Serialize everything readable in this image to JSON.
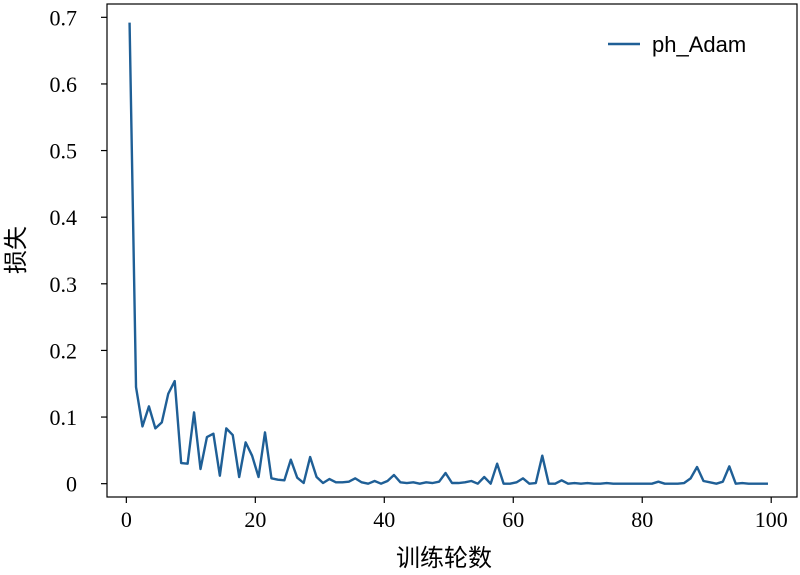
{
  "chart_data": {
    "type": "line",
    "xlabel": "训练轮数",
    "ylabel": "损失",
    "xlim": [
      -3,
      104
    ],
    "ylim": [
      -0.02,
      0.72
    ],
    "xticks": [
      0,
      20,
      40,
      60,
      80,
      100
    ],
    "xtick_labels": [
      "0",
      "20",
      "40",
      "60",
      "80",
      "100"
    ],
    "yticks": [
      0,
      0.1,
      0.2,
      0.3,
      0.4,
      0.5,
      0.6,
      0.7
    ],
    "ytick_labels": [
      "0",
      "0.1",
      "0.2",
      "0.3",
      "0.4",
      "0.5",
      "0.6",
      "0.7"
    ],
    "legend_position": "top-right",
    "grid": false,
    "series": [
      {
        "name": "ph_Adam",
        "color": "#1f5f96",
        "x": [
          0.5,
          1.5,
          2.5,
          3.5,
          4.5,
          5.5,
          6.5,
          7.5,
          8.5,
          9.5,
          10.5,
          11.5,
          12.5,
          13.5,
          14.5,
          15.5,
          16.5,
          17.5,
          18.5,
          19.5,
          20.5,
          21.5,
          22.5,
          23.5,
          24.5,
          25.5,
          26.5,
          27.5,
          28.5,
          29.5,
          30.5,
          31.5,
          32.5,
          33.5,
          34.5,
          35.5,
          36.5,
          37.5,
          38.5,
          39.5,
          40.5,
          41.5,
          42.5,
          43.5,
          44.5,
          45.5,
          46.5,
          47.5,
          48.5,
          49.5,
          50.5,
          51.5,
          52.5,
          53.5,
          54.5,
          55.5,
          56.5,
          57.5,
          58.5,
          59.5,
          60.5,
          61.5,
          62.5,
          63.5,
          64.5,
          65.5,
          66.5,
          67.5,
          68.5,
          69.5,
          70.5,
          71.5,
          72.5,
          73.5,
          74.5,
          75.5,
          76.5,
          77.5,
          78.5,
          79.5,
          80.5,
          81.5,
          82.5,
          83.5,
          84.5,
          85.5,
          86.5,
          87.5,
          88.5,
          89.5,
          90.5,
          91.5,
          92.5,
          93.5,
          94.5,
          95.5,
          96.5,
          97.5,
          98.5,
          99.5
        ],
        "values": [
          0.692,
          0.145,
          0.086,
          0.116,
          0.083,
          0.092,
          0.135,
          0.154,
          0.031,
          0.03,
          0.107,
          0.022,
          0.07,
          0.075,
          0.012,
          0.083,
          0.073,
          0.01,
          0.062,
          0.042,
          0.01,
          0.077,
          0.008,
          0.006,
          0.005,
          0.036,
          0.009,
          0.001,
          0.04,
          0.01,
          0.001,
          0.007,
          0.002,
          0.002,
          0.003,
          0.008,
          0.002,
          0.0,
          0.004,
          0.0,
          0.004,
          0.013,
          0.002,
          0.001,
          0.002,
          0.0,
          0.002,
          0.001,
          0.003,
          0.016,
          0.001,
          0.001,
          0.002,
          0.004,
          0.0,
          0.01,
          0.0,
          0.03,
          0.0,
          0.0,
          0.002,
          0.008,
          0.0,
          0.001,
          0.042,
          0.0,
          0.0,
          0.005,
          0.0,
          0.001,
          0.0,
          0.001,
          0.0,
          0.0,
          0.001,
          0.0,
          0.0,
          0.0,
          0.0,
          0.0,
          0.0,
          0.0,
          0.003,
          0.0,
          0.0,
          0.0,
          0.001,
          0.008,
          0.025,
          0.004,
          0.002,
          0.0,
          0.003,
          0.026,
          0.0,
          0.001,
          0.0,
          0.0,
          0.0,
          0.0
        ]
      }
    ]
  }
}
